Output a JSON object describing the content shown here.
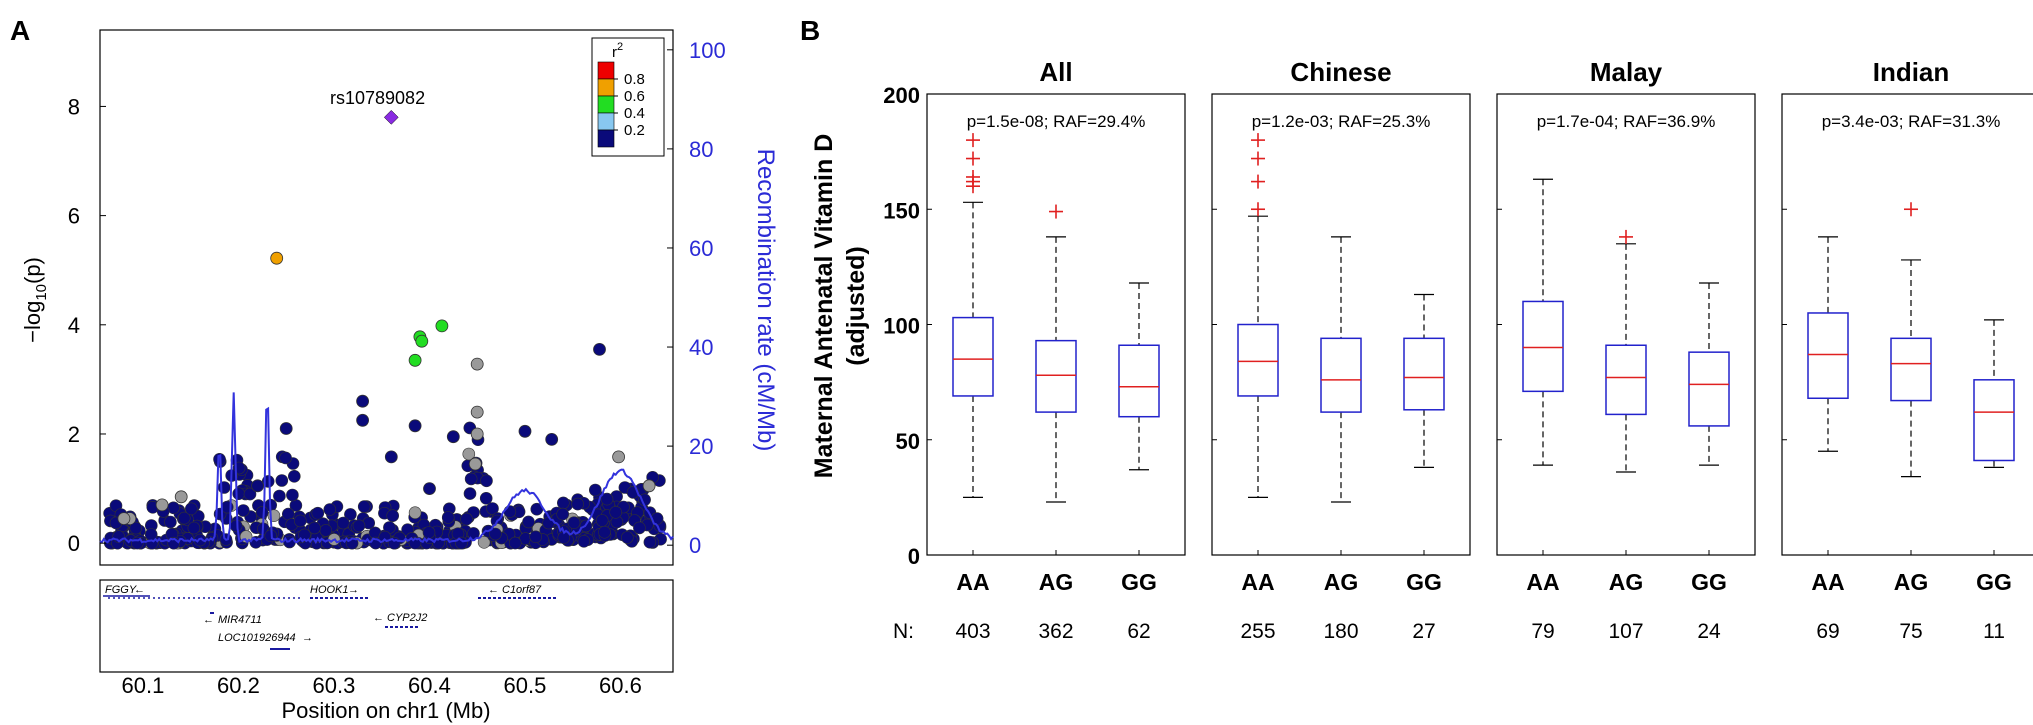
{
  "panel_a": {
    "letter": "A",
    "lead_snp": "rs10789082",
    "gene_names": [
      "FGGY",
      "HOOK1",
      "C1orf87",
      "MIR4711",
      "CYP2J2",
      "LOC101926944"
    ],
    "legend": {
      "title": "r",
      "title_sup": "2",
      "entries": [
        {
          "label": "0.8",
          "color": "#ee0000"
        },
        {
          "label": "0.6",
          "color": "#f0a000"
        },
        {
          "label": "0.4",
          "color": "#22dd22"
        },
        {
          "label": "0.2",
          "color": "#88c8f0"
        },
        {
          "label": "",
          "color": "#0a0a7a"
        }
      ]
    }
  },
  "panel_b": {
    "letter": "B",
    "n_prefix": "N:"
  },
  "chart_data": [
    {
      "type": "scatter",
      "title": "",
      "xlabel": "Position on chr1 (Mb)",
      "ylabel": "−log10(p)",
      "ylabel_main": "−log",
      "ylabel_sub": "10",
      "ylabel_tail": "(p)",
      "y2label": "Recombination rate (cM/Mb)",
      "xlim": [
        60.055,
        60.655
      ],
      "ylim": [
        -0.4,
        9.4
      ],
      "y2lim": [
        -4,
        104
      ],
      "x_ticks": [
        "60.1",
        "60.2",
        "60.3",
        "60.4",
        "60.5",
        "60.6"
      ],
      "x_tick_values": [
        60.1,
        60.2,
        60.3,
        60.4,
        60.5,
        60.6
      ],
      "y_ticks": [
        "0",
        "2",
        "4",
        "6",
        "8"
      ],
      "y_tick_values": [
        0,
        2,
        4,
        6,
        8
      ],
      "y2_ticks": [
        "0",
        "20",
        "40",
        "60",
        "80",
        "100"
      ],
      "y2_tick_values": [
        0,
        20,
        40,
        60,
        80,
        100
      ],
      "lead_snp": {
        "x": 60.36,
        "y": 7.8,
        "color": "#8a2be2"
      },
      "highlighted_points": [
        {
          "x": 60.24,
          "y": 5.22,
          "color": "#f0a000"
        },
        {
          "x": 60.413,
          "y": 3.98,
          "color": "#22dd22"
        },
        {
          "x": 60.39,
          "y": 3.78,
          "color": "#22dd22"
        },
        {
          "x": 60.392,
          "y": 3.7,
          "color": "#22dd22"
        },
        {
          "x": 60.385,
          "y": 3.35,
          "color": "#22dd22"
        },
        {
          "x": 60.578,
          "y": 3.55,
          "color": "#0a0a7a"
        },
        {
          "x": 60.45,
          "y": 3.28,
          "color": "#999999"
        },
        {
          "x": 60.33,
          "y": 2.6,
          "color": "#0a0a7a"
        },
        {
          "x": 60.33,
          "y": 2.25,
          "color": "#0a0a7a"
        },
        {
          "x": 60.385,
          "y": 2.15,
          "color": "#0a0a7a"
        },
        {
          "x": 60.36,
          "y": 1.58,
          "color": "#0a0a7a"
        },
        {
          "x": 60.425,
          "y": 1.95,
          "color": "#0a0a7a"
        },
        {
          "x": 60.5,
          "y": 2.05,
          "color": "#0a0a7a"
        },
        {
          "x": 60.528,
          "y": 1.9,
          "color": "#0a0a7a"
        },
        {
          "x": 60.25,
          "y": 2.1,
          "color": "#0a0a7a"
        },
        {
          "x": 60.45,
          "y": 2.4,
          "color": "#999999"
        },
        {
          "x": 60.45,
          "y": 2.0,
          "color": "#999999"
        },
        {
          "x": 60.448,
          "y": 1.45,
          "color": "#999999"
        },
        {
          "x": 60.598,
          "y": 1.58,
          "color": "#999999"
        },
        {
          "x": 60.08,
          "y": 0.45,
          "color": "#999999"
        },
        {
          "x": 60.12,
          "y": 0.7,
          "color": "#999999"
        },
        {
          "x": 60.14,
          "y": 0.85,
          "color": "#999999"
        },
        {
          "x": 60.22,
          "y": 1.05,
          "color": "#0a0a7a"
        },
        {
          "x": 60.4,
          "y": 1.0,
          "color": "#0a0a7a"
        },
        {
          "x": 60.63,
          "y": 1.05,
          "color": "#999999"
        }
      ],
      "recombination_peaks": [
        {
          "x": 60.18,
          "y2": 20
        },
        {
          "x": 60.195,
          "y2": 30
        },
        {
          "x": 60.23,
          "y2": 31
        },
        {
          "x": 60.5,
          "y2": 10
        },
        {
          "x": 60.6,
          "y2": 14
        }
      ]
    },
    {
      "type": "box",
      "ylabel": "Maternal Antenatal Vitamin D",
      "ylabel2": "(adjusted)",
      "ylim": [
        0,
        200
      ],
      "y_ticks": [
        "0",
        "50",
        "100",
        "150",
        "200"
      ],
      "y_tick_values": [
        0,
        50,
        100,
        150,
        200
      ],
      "categories": [
        "AA",
        "AG",
        "GG"
      ],
      "facets": [
        {
          "title": "All",
          "stat": "p=1.5e-08; RAF=29.4%",
          "n": [
            "403",
            "362",
            "62"
          ],
          "boxes": [
            {
              "whisker_low": 25,
              "q1": 69,
              "median": 85,
              "q3": 103,
              "whisker_high": 153,
              "outliers": [
                160,
                162,
                164,
                172,
                180
              ]
            },
            {
              "whisker_low": 23,
              "q1": 62,
              "median": 78,
              "q3": 93,
              "whisker_high": 138,
              "outliers": [
                149
              ]
            },
            {
              "whisker_low": 37,
              "q1": 60,
              "median": 73,
              "q3": 91,
              "whisker_high": 118,
              "outliers": []
            }
          ]
        },
        {
          "title": "Chinese",
          "stat": "p=1.2e-03; RAF=25.3%",
          "n": [
            "255",
            "180",
            "27"
          ],
          "boxes": [
            {
              "whisker_low": 25,
              "q1": 69,
              "median": 84,
              "q3": 100,
              "whisker_high": 147,
              "outliers": [
                150,
                162,
                172,
                180
              ]
            },
            {
              "whisker_low": 23,
              "q1": 62,
              "median": 76,
              "q3": 94,
              "whisker_high": 138,
              "outliers": []
            },
            {
              "whisker_low": 38,
              "q1": 63,
              "median": 77,
              "q3": 94,
              "whisker_high": 113,
              "outliers": []
            }
          ]
        },
        {
          "title": "Malay",
          "stat": "p=1.7e-04; RAF=36.9%",
          "n": [
            "79",
            "107",
            "24"
          ],
          "boxes": [
            {
              "whisker_low": 39,
              "q1": 71,
              "median": 90,
              "q3": 110,
              "whisker_high": 163,
              "outliers": []
            },
            {
              "whisker_low": 36,
              "q1": 61,
              "median": 77,
              "q3": 91,
              "whisker_high": 135,
              "outliers": [
                138
              ]
            },
            {
              "whisker_low": 39,
              "q1": 56,
              "median": 74,
              "q3": 88,
              "whisker_high": 118,
              "outliers": []
            }
          ]
        },
        {
          "title": "Indian",
          "stat": "p=3.4e-03; RAF=31.3%",
          "n": [
            "69",
            "75",
            "11"
          ],
          "boxes": [
            {
              "whisker_low": 45,
              "q1": 68,
              "median": 87,
              "q3": 105,
              "whisker_high": 138,
              "outliers": []
            },
            {
              "whisker_low": 34,
              "q1": 67,
              "median": 83,
              "q3": 94,
              "whisker_high": 128,
              "outliers": [
                150
              ]
            },
            {
              "whisker_low": 38,
              "q1": 41,
              "median": 62,
              "q3": 76,
              "whisker_high": 102,
              "outliers": []
            }
          ]
        }
      ]
    }
  ]
}
